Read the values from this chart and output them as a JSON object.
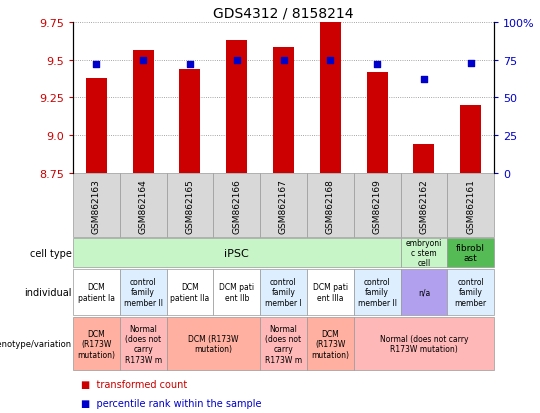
{
  "title": "GDS4312 / 8158214",
  "samples": [
    "GSM862163",
    "GSM862164",
    "GSM862165",
    "GSM862166",
    "GSM862167",
    "GSM862168",
    "GSM862169",
    "GSM862162",
    "GSM862161"
  ],
  "transformed_counts": [
    9.38,
    9.56,
    9.44,
    9.63,
    9.58,
    9.75,
    9.42,
    8.94,
    9.2
  ],
  "percentile_ranks": [
    72,
    75,
    72,
    75,
    75,
    75,
    72,
    62,
    73
  ],
  "ylim": [
    8.75,
    9.75
  ],
  "yticks": [
    8.75,
    9.0,
    9.25,
    9.5,
    9.75
  ],
  "y2ticks": [
    0,
    25,
    50,
    75,
    100
  ],
  "bar_color": "#cc0000",
  "dot_color": "#0000cc",
  "grid_color": "#888888",
  "left_label_color": "#cc0000",
  "right_label_color": "#0000cc",
  "sample_bg_color": "#d8d8d8",
  "ipsc_color": "#c8f5c8",
  "esc_color": "#c8f5c8",
  "fibro_color": "#55bb55",
  "dcm_indv_color": "#ffffff",
  "ctrl_indv_color": "#ddeeff",
  "na_indv_color": "#b0a0ee",
  "dcm_geno_color": "#ffb0a0",
  "norm_geno_color": "#ffb8b8",
  "individual_row": [
    {
      "text": "DCM\npatient Ia",
      "color": "#ffffff"
    },
    {
      "text": "control\nfamily\nmember II",
      "color": "#ddeeff"
    },
    {
      "text": "DCM\npatient IIa",
      "color": "#ffffff"
    },
    {
      "text": "DCM pati\nent IIb",
      "color": "#ffffff"
    },
    {
      "text": "control\nfamily\nmember I",
      "color": "#ddeeff"
    },
    {
      "text": "DCM pati\nent IIIa",
      "color": "#ffffff"
    },
    {
      "text": "control\nfamily\nmember II",
      "color": "#ddeeff"
    },
    {
      "text": "n/a",
      "color": "#b0a0ee"
    },
    {
      "text": "control\nfamily\nmember",
      "color": "#ddeeff"
    }
  ],
  "geno_spans": [
    {
      "start": 0,
      "end": 0,
      "text": "DCM\n(R173W\nmutation)",
      "color": "#ffb0a0"
    },
    {
      "start": 1,
      "end": 1,
      "text": "Normal\n(does not\ncarry\nR173W m",
      "color": "#ffb8b8"
    },
    {
      "start": 2,
      "end": 3,
      "text": "DCM (R173W\nmutation)",
      "color": "#ffb0a0"
    },
    {
      "start": 4,
      "end": 4,
      "text": "Normal\n(does not\ncarry\nR173W m",
      "color": "#ffb8b8"
    },
    {
      "start": 5,
      "end": 5,
      "text": "DCM\n(R173W\nmutation)",
      "color": "#ffb0a0"
    },
    {
      "start": 6,
      "end": 8,
      "text": "Normal (does not carry\nR173W mutation)",
      "color": "#ffb8b8"
    }
  ]
}
